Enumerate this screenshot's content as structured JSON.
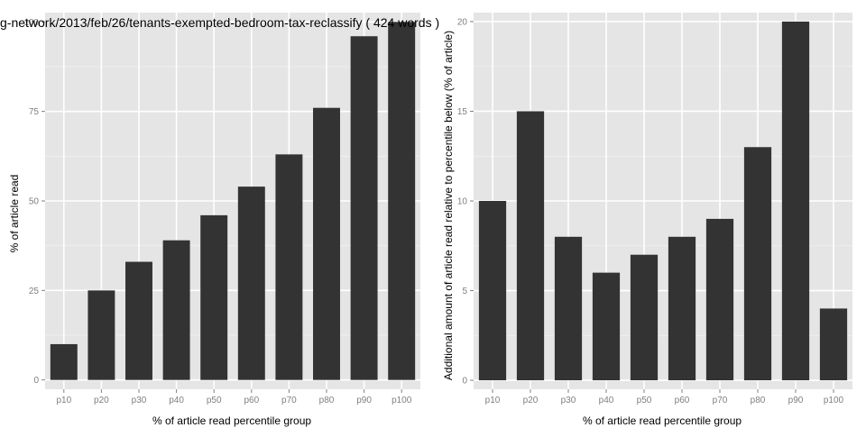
{
  "chart_data": [
    {
      "type": "bar",
      "title": "g-network/2013/feb/26/tenants-exempted-bedroom-tax-reclassify ( 424 words )",
      "xlabel": "% of article read percentile group",
      "ylabel": "% of article read",
      "categories": [
        "p10",
        "p20",
        "p30",
        "p40",
        "p50",
        "p60",
        "p70",
        "p80",
        "p90",
        "p100"
      ],
      "values": [
        10,
        25,
        33,
        39,
        46,
        54,
        63,
        76,
        96,
        100
      ],
      "ylim": [
        -2.6,
        102.6
      ],
      "yticks": [
        0,
        25,
        50,
        75,
        100
      ],
      "grid": true,
      "colors": {
        "panel": "#e5e5e5",
        "bar": "#333333",
        "grid": "#ffffff",
        "gridMinor": "#f2f2f2"
      }
    },
    {
      "type": "bar",
      "title": "",
      "xlabel": "% of article read percentile group",
      "ylabel": "Additional amount of article read relative to percentile below (% of article)",
      "categories": [
        "p10",
        "p20",
        "p30",
        "p40",
        "p50",
        "p60",
        "p70",
        "p80",
        "p90",
        "p100"
      ],
      "values": [
        10,
        15,
        8,
        6,
        7,
        8,
        9,
        13,
        20,
        4
      ],
      "ylim": [
        -0.5,
        20.5
      ],
      "yticks": [
        0,
        5,
        10,
        15,
        20
      ],
      "grid": true,
      "colors": {
        "panel": "#e5e5e5",
        "bar": "#333333",
        "grid": "#ffffff",
        "gridMinor": "#f2f2f2"
      }
    }
  ]
}
